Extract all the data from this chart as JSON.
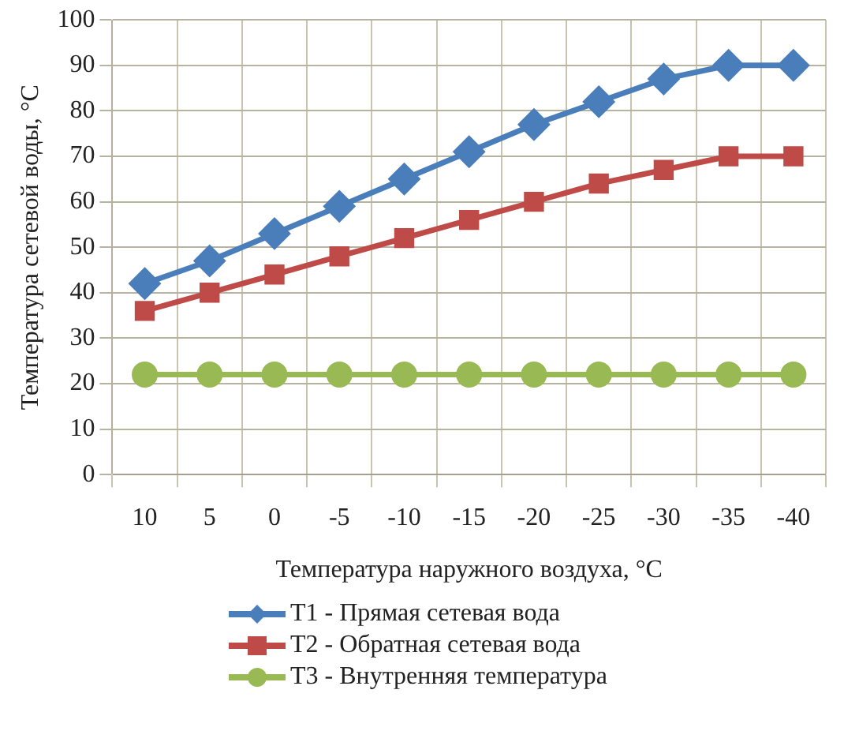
{
  "chart_data": {
    "type": "line",
    "xlabel": "Температура наружного воздуха, °C",
    "ylabel": "Температура сетевой воды, °C",
    "categories": [
      "10",
      "5",
      "0",
      "-5",
      "-10",
      "-15",
      "-20",
      "-25",
      "-30",
      "-35",
      "-40"
    ],
    "series": [
      {
        "name": "T1 - Прямая сетевая вода",
        "color": "#4a7ebb",
        "marker": "diamond",
        "values": [
          42,
          47,
          53,
          59,
          65,
          71,
          77,
          82,
          87,
          90,
          90
        ]
      },
      {
        "name": "T2 - Обратная сетевая вода",
        "color": "#be4b48",
        "marker": "square",
        "values": [
          36,
          40,
          44,
          48,
          52,
          56,
          60,
          64,
          67,
          70,
          70
        ]
      },
      {
        "name": "T3 - Внутренняя температура",
        "color": "#98b954",
        "marker": "circle",
        "values": [
          22,
          22,
          22,
          22,
          22,
          22,
          22,
          22,
          22,
          22,
          22
        ]
      }
    ],
    "ylim": [
      0,
      100
    ],
    "yticks": [
      0,
      10,
      20,
      30,
      40,
      50,
      60,
      70,
      80,
      90,
      100
    ],
    "grid": true,
    "legend": "bottom"
  }
}
